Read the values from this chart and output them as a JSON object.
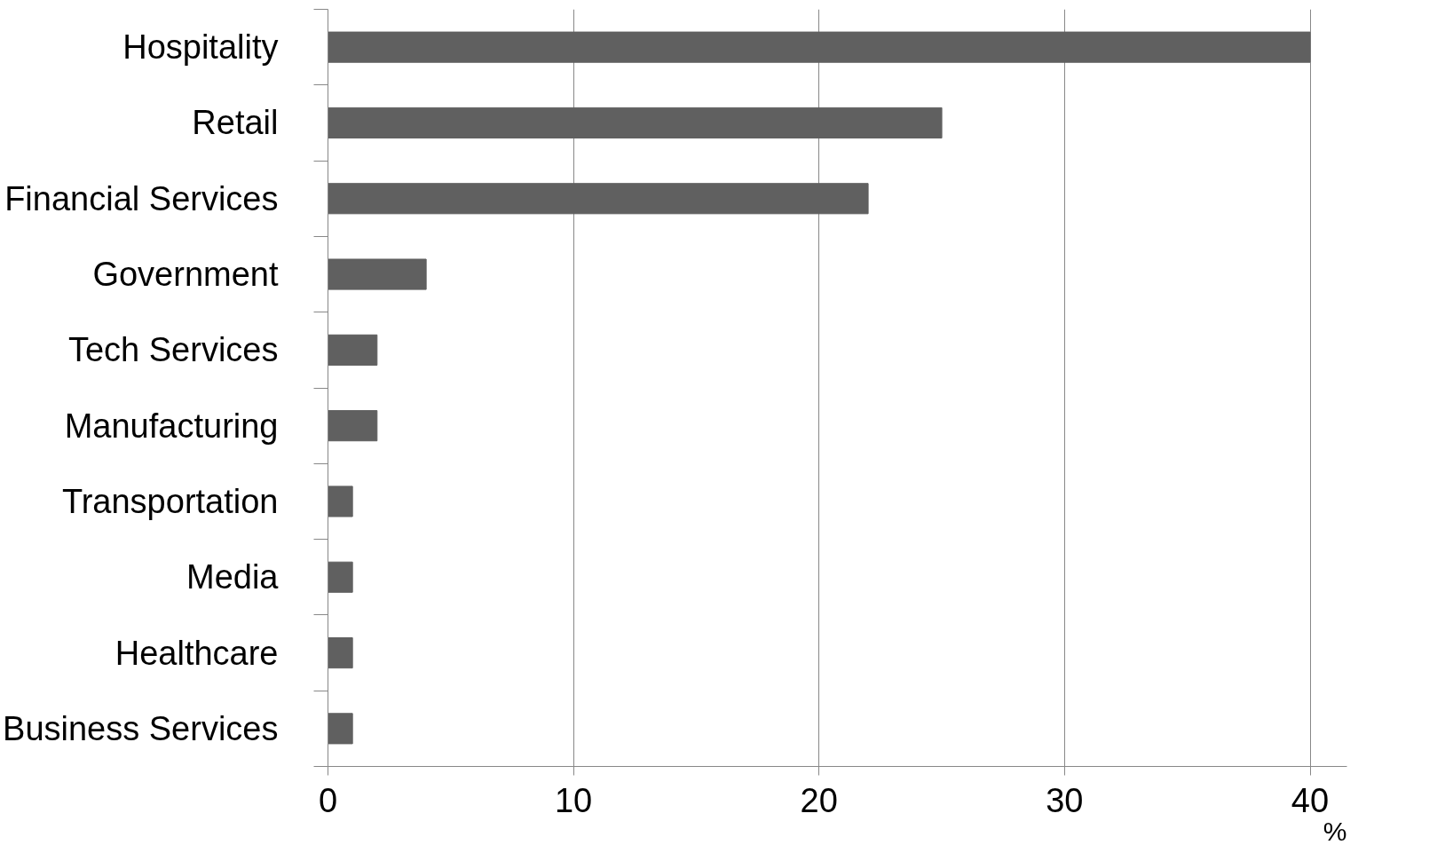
{
  "chart_data": {
    "type": "bar",
    "orientation": "horizontal",
    "xlabel": "%",
    "categories": [
      "Hospitality",
      "Retail",
      "Financial Services",
      "Government",
      "Tech Services",
      "Manufacturing",
      "Transportation",
      "Media",
      "Healthcare",
      "Business Services"
    ],
    "values": [
      40,
      25,
      22,
      4,
      2,
      2,
      1,
      1,
      1,
      1
    ],
    "color": "#606060",
    "xlim": [
      0,
      41.5
    ],
    "xticks": [
      0,
      10,
      20,
      30,
      40
    ],
    "grid": "x"
  }
}
